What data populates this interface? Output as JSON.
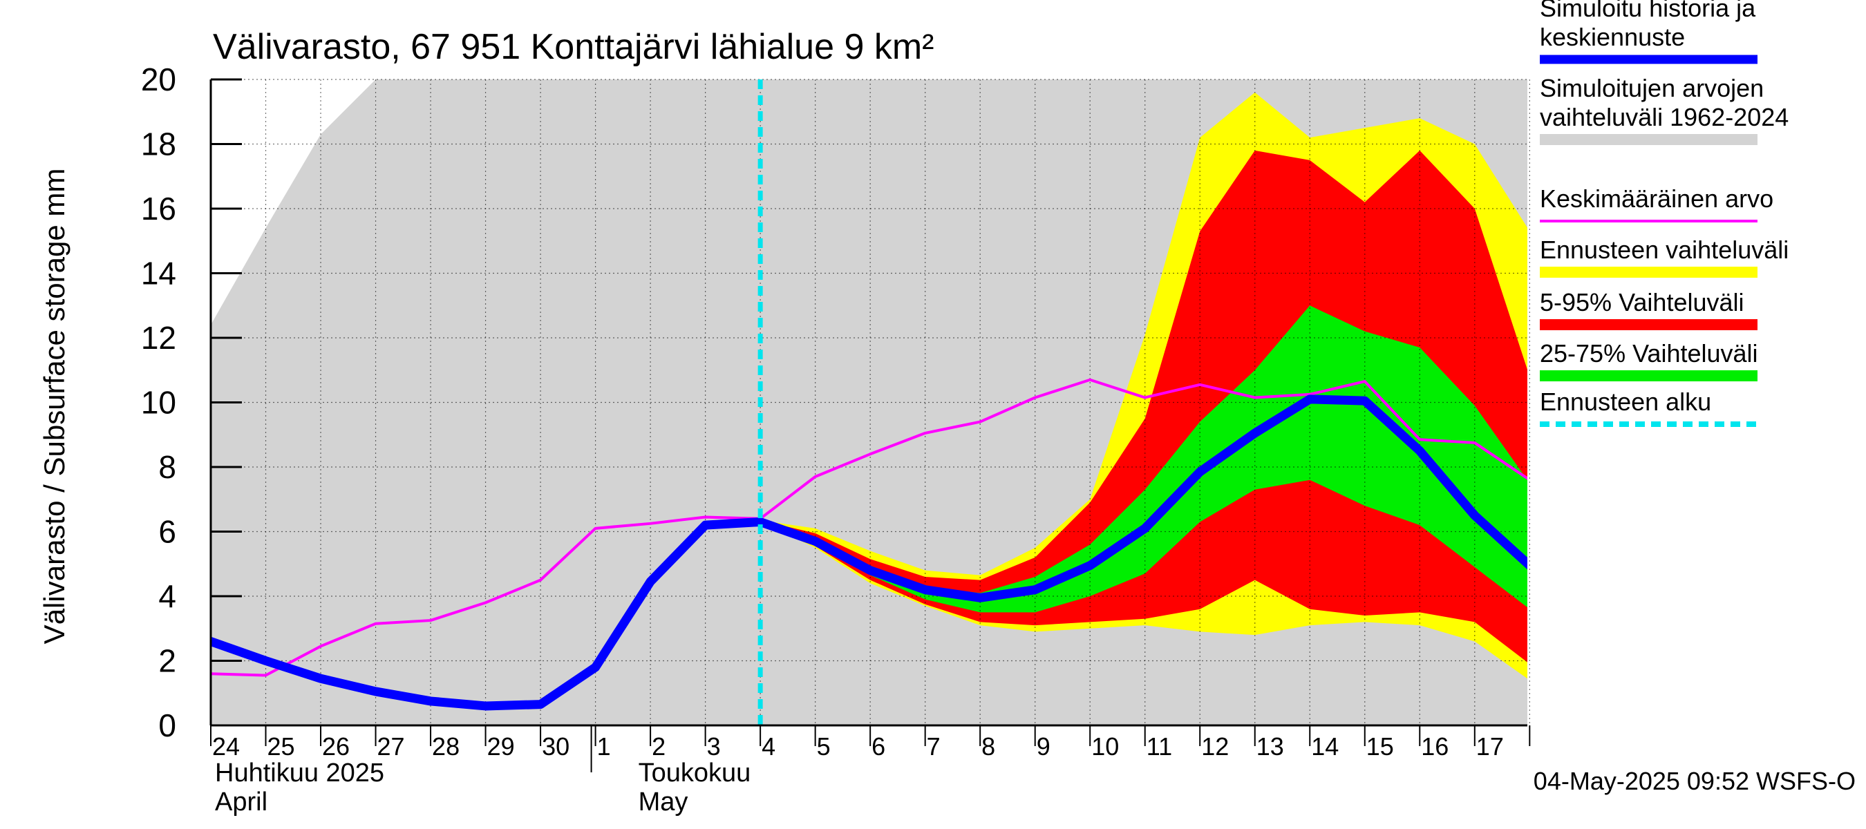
{
  "chart_data": {
    "type": "area",
    "title": "Välivarasto, 67 951 Konttajärvi lähialue 9 km²",
    "ylabel": "Välivarasto / Subsurface storage  mm",
    "ylim": [
      0,
      20
    ],
    "yticks": [
      0,
      2,
      4,
      6,
      8,
      10,
      12,
      14,
      16,
      18,
      20
    ],
    "xlim": [
      "2025-04-24",
      "2025-05-17T23:00"
    ],
    "x_tick_labels": [
      "24",
      "25",
      "26",
      "27",
      "28",
      "29",
      "30",
      "1",
      "2",
      "3",
      "4",
      "5",
      "6",
      "7",
      "8",
      "9",
      "10",
      "11",
      "12",
      "13",
      "14",
      "15",
      "16",
      "17"
    ],
    "month_labels": [
      {
        "fi": "Huhtikuu  2025",
        "en": "April"
      },
      {
        "fi": "Toukokuu",
        "en": "May"
      }
    ],
    "grid": true,
    "legend_placement": "right",
    "footer": "04-May-2025 09:52 WSFS-O",
    "forecast_start": "2025-05-04",
    "series": [
      {
        "name": "Simuloitu historia ja keskiennuste",
        "color": "#0000ff",
        "x": [
          "2025-04-24",
          "2025-04-25",
          "2025-04-26",
          "2025-04-27",
          "2025-04-28",
          "2025-04-29",
          "2025-04-30",
          "2025-05-01",
          "2025-05-02",
          "2025-05-03",
          "2025-05-04",
          "2025-05-05",
          "2025-05-06",
          "2025-05-07",
          "2025-05-08",
          "2025-05-09",
          "2025-05-10",
          "2025-05-11",
          "2025-05-12",
          "2025-05-13",
          "2025-05-14",
          "2025-05-15",
          "2025-05-16",
          "2025-05-17",
          "2025-05-18"
        ],
        "values": [
          2.6,
          2.0,
          1.45,
          1.05,
          0.75,
          0.6,
          0.65,
          1.8,
          4.45,
          6.2,
          6.3,
          5.7,
          4.8,
          4.2,
          3.95,
          4.2,
          4.95,
          6.1,
          7.85,
          9.05,
          10.1,
          10.05,
          8.5,
          6.5,
          4.95
        ]
      },
      {
        "name": "Keskimääräinen arvo",
        "color": "#ff00ff",
        "x": [
          "2025-04-24",
          "2025-04-25",
          "2025-04-26",
          "2025-04-27",
          "2025-04-28",
          "2025-04-29",
          "2025-04-30",
          "2025-05-01",
          "2025-05-02",
          "2025-05-03",
          "2025-05-04",
          "2025-05-05",
          "2025-05-06",
          "2025-05-07",
          "2025-05-08",
          "2025-05-09",
          "2025-05-10",
          "2025-05-11",
          "2025-05-12",
          "2025-05-13",
          "2025-05-14",
          "2025-05-15",
          "2025-05-16",
          "2025-05-17",
          "2025-05-18"
        ],
        "values": [
          1.6,
          1.55,
          2.45,
          3.15,
          3.25,
          3.8,
          4.5,
          6.1,
          6.25,
          6.45,
          6.4,
          7.7,
          8.4,
          9.05,
          9.4,
          10.15,
          10.7,
          10.15,
          10.55,
          10.15,
          10.25,
          10.65,
          8.85,
          8.75,
          7.6
        ]
      }
    ],
    "bands": [
      {
        "name": "Simuloitujen arvojen vaihteluväli 1962-2024",
        "color": "#d3d3d3",
        "x": [
          "2025-04-24",
          "2025-04-25",
          "2025-04-26",
          "2025-04-27",
          "2025-05-18"
        ],
        "lower": [
          0,
          0,
          0,
          0,
          0
        ],
        "upper": [
          12.4,
          15.4,
          18.3,
          20,
          20
        ]
      },
      {
        "name": "Ennusteen vaihteluväli",
        "color": "#ffff00",
        "x": [
          "2025-05-04",
          "2025-05-05",
          "2025-05-06",
          "2025-05-07",
          "2025-05-08",
          "2025-05-09",
          "2025-05-10",
          "2025-05-11",
          "2025-05-12",
          "2025-05-13",
          "2025-05-14",
          "2025-05-15",
          "2025-05-16",
          "2025-05-17",
          "2025-05-18"
        ],
        "lower": [
          6.3,
          5.5,
          4.4,
          3.7,
          3.1,
          2.9,
          3.0,
          3.1,
          2.9,
          2.8,
          3.1,
          3.2,
          3.1,
          2.6,
          1.4
        ],
        "upper": [
          6.35,
          6.1,
          5.4,
          4.8,
          4.65,
          5.5,
          7.0,
          12.1,
          18.2,
          19.6,
          18.2,
          18.5,
          18.8,
          18.0,
          15.3
        ]
      },
      {
        "name": "5-95% Vaihteluväli",
        "color": "#ff0000",
        "x": [
          "2025-05-04",
          "2025-05-05",
          "2025-05-06",
          "2025-05-07",
          "2025-05-08",
          "2025-05-09",
          "2025-05-10",
          "2025-05-11",
          "2025-05-12",
          "2025-05-13",
          "2025-05-14",
          "2025-05-15",
          "2025-05-16",
          "2025-05-17",
          "2025-05-18"
        ],
        "lower": [
          6.3,
          5.55,
          4.5,
          3.75,
          3.2,
          3.1,
          3.2,
          3.3,
          3.6,
          4.5,
          3.6,
          3.4,
          3.5,
          3.2,
          1.9
        ],
        "upper": [
          6.35,
          5.95,
          5.15,
          4.6,
          4.5,
          5.2,
          6.9,
          9.5,
          15.3,
          17.8,
          17.5,
          16.2,
          17.8,
          16.0,
          10.8
        ]
      },
      {
        "name": "25-75% Vaihteluväli",
        "color": "#00ee00",
        "x": [
          "2025-05-04",
          "2025-05-05",
          "2025-05-06",
          "2025-05-07",
          "2025-05-08",
          "2025-05-09",
          "2025-05-10",
          "2025-05-11",
          "2025-05-12",
          "2025-05-13",
          "2025-05-14",
          "2025-05-15",
          "2025-05-16",
          "2025-05-17",
          "2025-05-18"
        ],
        "lower": [
          6.3,
          5.65,
          4.65,
          3.9,
          3.5,
          3.5,
          4.0,
          4.7,
          6.3,
          7.3,
          7.6,
          6.8,
          6.2,
          4.9,
          3.6
        ],
        "upper": [
          6.3,
          5.8,
          4.95,
          4.3,
          4.1,
          4.6,
          5.6,
          7.3,
          9.4,
          11.0,
          13.0,
          12.2,
          11.7,
          9.9,
          7.5
        ]
      }
    ],
    "legend": [
      {
        "label": "Simuloitu historia ja keskiennuste",
        "color": "#0000ff",
        "style": "thick-line"
      },
      {
        "label": "Simuloitujen arvojen vaihteluväli 1962-2024",
        "color": "#d3d3d3",
        "style": "band"
      },
      {
        "label": "Keskimääräinen arvo",
        "color": "#ff00ff",
        "style": "line"
      },
      {
        "label": "Ennusteen vaihteluväli",
        "color": "#ffff00",
        "style": "band"
      },
      {
        "label": "5-95% Vaihteluväli",
        "color": "#ff0000",
        "style": "band"
      },
      {
        "label": "25-75% Vaihteluväli",
        "color": "#00ee00",
        "style": "band"
      },
      {
        "label": "Ennusteen alku",
        "color": "#00e5ee",
        "style": "dashed"
      }
    ]
  }
}
